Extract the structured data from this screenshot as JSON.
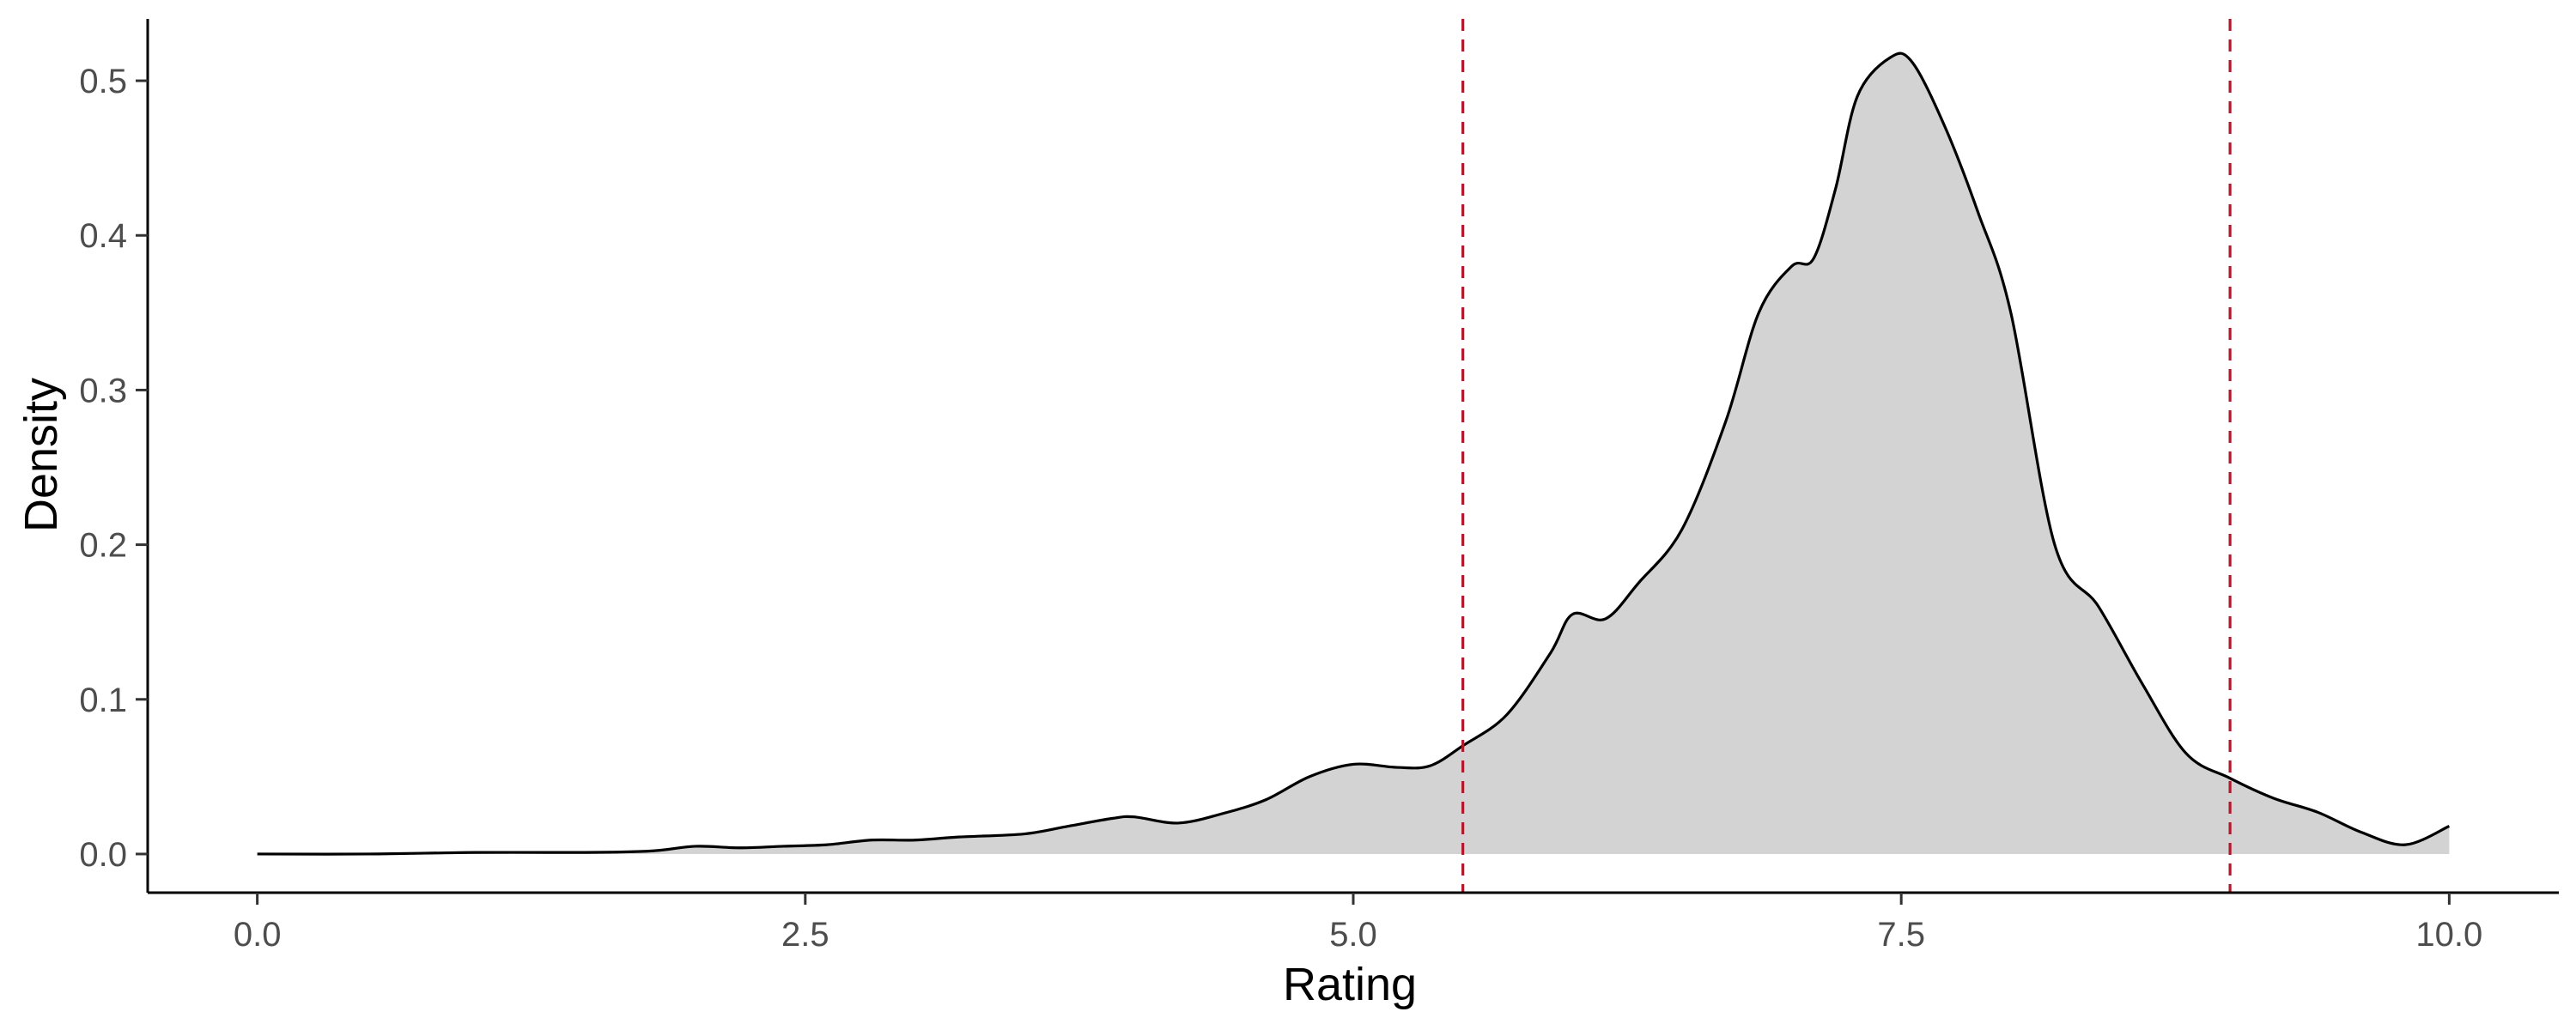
{
  "chart_data": {
    "type": "area",
    "title": "",
    "xlabel": "Rating",
    "ylabel": "Density",
    "xlim": [
      -0.5,
      10.5
    ],
    "ylim": [
      -0.025,
      0.54
    ],
    "x_ticks": [
      {
        "value": 0.0,
        "label": "0.0"
      },
      {
        "value": 2.5,
        "label": "2.5"
      },
      {
        "value": 5.0,
        "label": "5.0"
      },
      {
        "value": 7.5,
        "label": "7.5"
      },
      {
        "value": 10.0,
        "label": "10.0"
      }
    ],
    "y_ticks": [
      {
        "value": 0.0,
        "label": "0.0"
      },
      {
        "value": 0.1,
        "label": "0.1"
      },
      {
        "value": 0.2,
        "label": "0.2"
      },
      {
        "value": 0.3,
        "label": "0.3"
      },
      {
        "value": 0.4,
        "label": "0.4"
      },
      {
        "value": 0.5,
        "label": "0.5"
      }
    ],
    "grid": false,
    "series": [
      {
        "fill": "#d3d3d3",
        "line_color": "#000000",
        "x": [
          0.0,
          0.5,
          1.0,
          1.5,
          1.8,
          2.0,
          2.2,
          2.4,
          2.6,
          2.8,
          3.0,
          3.2,
          3.5,
          3.7,
          3.9,
          4.0,
          4.2,
          4.4,
          4.6,
          4.8,
          5.0,
          5.2,
          5.35,
          5.5,
          5.7,
          5.9,
          6.0,
          6.15,
          6.3,
          6.5,
          6.7,
          6.85,
          7.0,
          7.1,
          7.2,
          7.3,
          7.45,
          7.55,
          7.7,
          7.85,
          8.0,
          8.2,
          8.4,
          8.6,
          8.8,
          9.0,
          9.2,
          9.4,
          9.6,
          9.8,
          10.0
        ],
        "y": [
          0.0,
          0.0,
          0.001,
          0.001,
          0.002,
          0.005,
          0.004,
          0.005,
          0.006,
          0.009,
          0.009,
          0.011,
          0.013,
          0.018,
          0.023,
          0.024,
          0.02,
          0.026,
          0.035,
          0.05,
          0.058,
          0.056,
          0.057,
          0.07,
          0.09,
          0.13,
          0.155,
          0.152,
          0.175,
          0.21,
          0.28,
          0.35,
          0.38,
          0.385,
          0.43,
          0.49,
          0.515,
          0.512,
          0.47,
          0.415,
          0.35,
          0.2,
          0.16,
          0.11,
          0.065,
          0.049,
          0.036,
          0.027,
          0.014,
          0.006,
          0.018
        ]
      }
    ],
    "reference_lines": [
      {
        "axis": "x",
        "value": 5.5,
        "color": "#b2182b",
        "style": "dashed"
      },
      {
        "axis": "x",
        "value": 9.0,
        "color": "#b2182b",
        "style": "dashed"
      }
    ]
  }
}
